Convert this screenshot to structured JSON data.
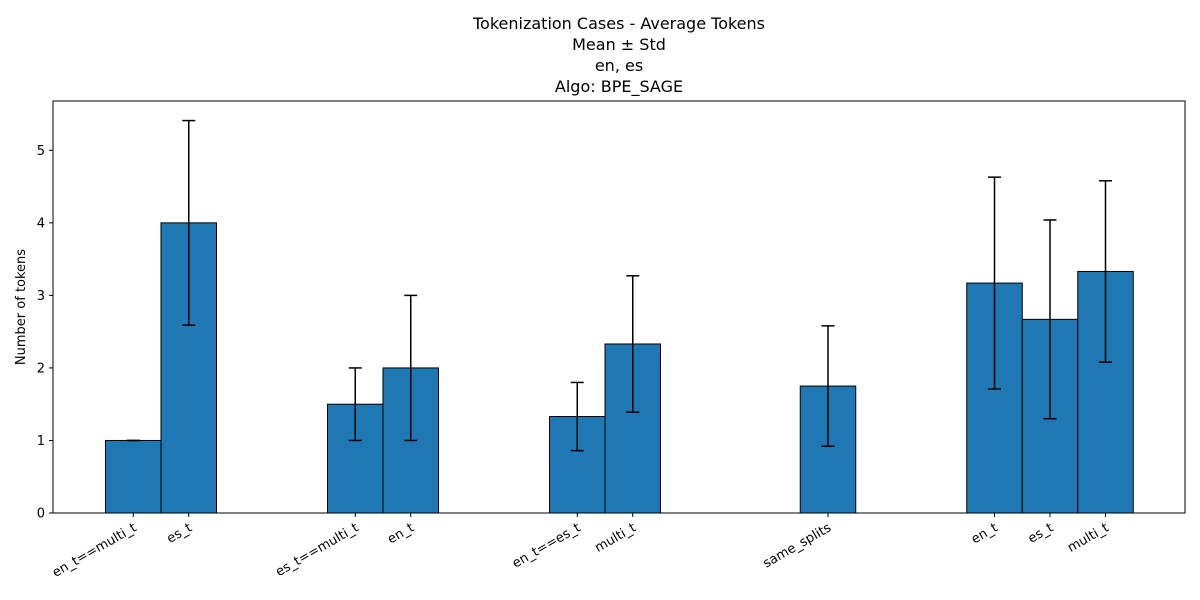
{
  "chart_data": {
    "type": "bar",
    "title_lines": [
      "Tokenization Cases - Average Tokens",
      "Mean ± Std",
      "en, es",
      "Algo: BPE_SAGE"
    ],
    "xlabel": "",
    "ylabel": "Number of tokens",
    "ylim": [
      0,
      5.68
    ],
    "yticks": [
      0,
      1,
      2,
      3,
      4,
      5
    ],
    "grid": false,
    "bar_color": "#1f77b4",
    "edge_color": "#000000",
    "groups": [
      {
        "bars": [
          {
            "label": "en_t==multi_t",
            "mean": 1.0,
            "std": 0.0
          },
          {
            "label": "es_t",
            "mean": 4.0,
            "std": 1.41
          }
        ]
      },
      {
        "bars": [
          {
            "label": "es_t==multi_t",
            "mean": 1.5,
            "std": 0.5
          },
          {
            "label": "en_t",
            "mean": 2.0,
            "std": 1.0
          }
        ]
      },
      {
        "bars": [
          {
            "label": "en_t==es_t",
            "mean": 1.33,
            "std": 0.47
          },
          {
            "label": "multi_t",
            "mean": 2.33,
            "std": 0.94
          }
        ]
      },
      {
        "bars": [
          {
            "label": "same_splits",
            "mean": 1.75,
            "std": 0.83
          }
        ]
      },
      {
        "bars": [
          {
            "label": "en_t",
            "mean": 3.17,
            "std": 1.46
          },
          {
            "label": "es_t",
            "mean": 2.67,
            "std": 1.37
          },
          {
            "label": "multi_t",
            "mean": 3.33,
            "std": 1.25
          }
        ]
      }
    ]
  }
}
